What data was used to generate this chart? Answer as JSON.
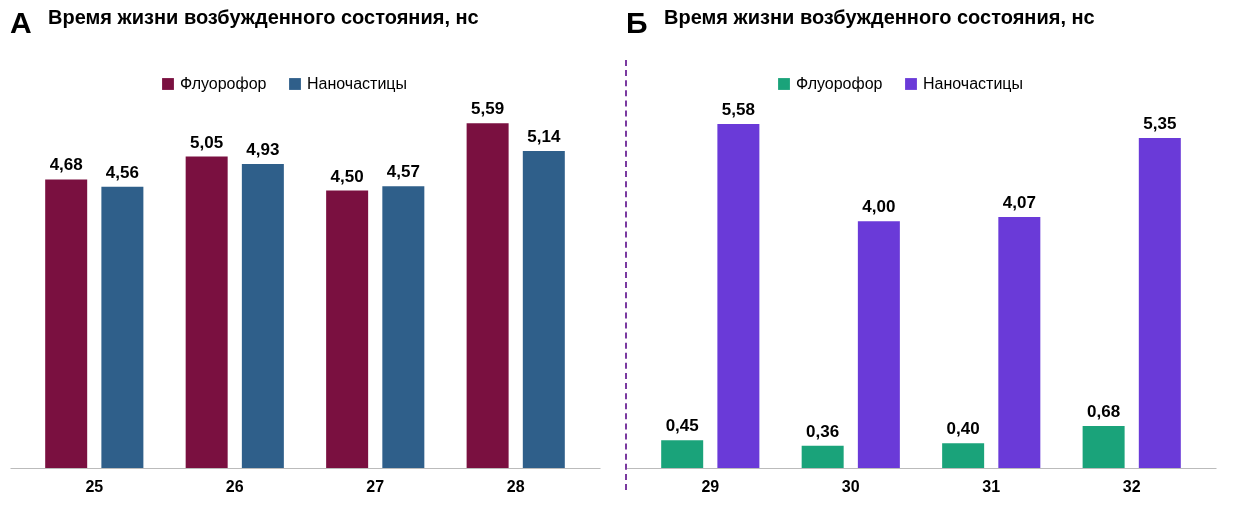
{
  "chart_data": [
    {
      "type": "bar",
      "title": "Время жизни возбужденного состояния, нс",
      "annotations": [
        "А"
      ],
      "categories": [
        "25",
        "26",
        "27",
        "28"
      ],
      "series": [
        {
          "name": "Флуорофор",
          "color": "#7a1040",
          "values": [
            4.68,
            5.05,
            4.5,
            5.59
          ],
          "value_labels": [
            "4,68",
            "5,05",
            "4,50",
            "5,59"
          ]
        },
        {
          "name": "Наночастицы",
          "color": "#2f5f8a",
          "values": [
            4.56,
            4.93,
            4.57,
            5.14
          ],
          "value_labels": [
            "4,56",
            "4,93",
            "4,57",
            "5,14"
          ]
        }
      ],
      "legend": "top"
    },
    {
      "type": "bar",
      "title": "Время жизни возбужденного состояния, нс",
      "annotations": [
        "Б"
      ],
      "categories": [
        "29",
        "30",
        "31",
        "32"
      ],
      "series": [
        {
          "name": "Флуорофор",
          "color": "#1aa37a",
          "values": [
            0.45,
            0.36,
            0.4,
            0.68
          ],
          "value_labels": [
            "0,45",
            "0,36",
            "0,40",
            "0,68"
          ]
        },
        {
          "name": "Наночастицы",
          "color": "#6a3ad8",
          "values": [
            5.58,
            4.0,
            4.07,
            5.35
          ],
          "value_labels": [
            "5,58",
            "4,00",
            "4,07",
            "5,35"
          ]
        }
      ],
      "legend": "top"
    }
  ]
}
